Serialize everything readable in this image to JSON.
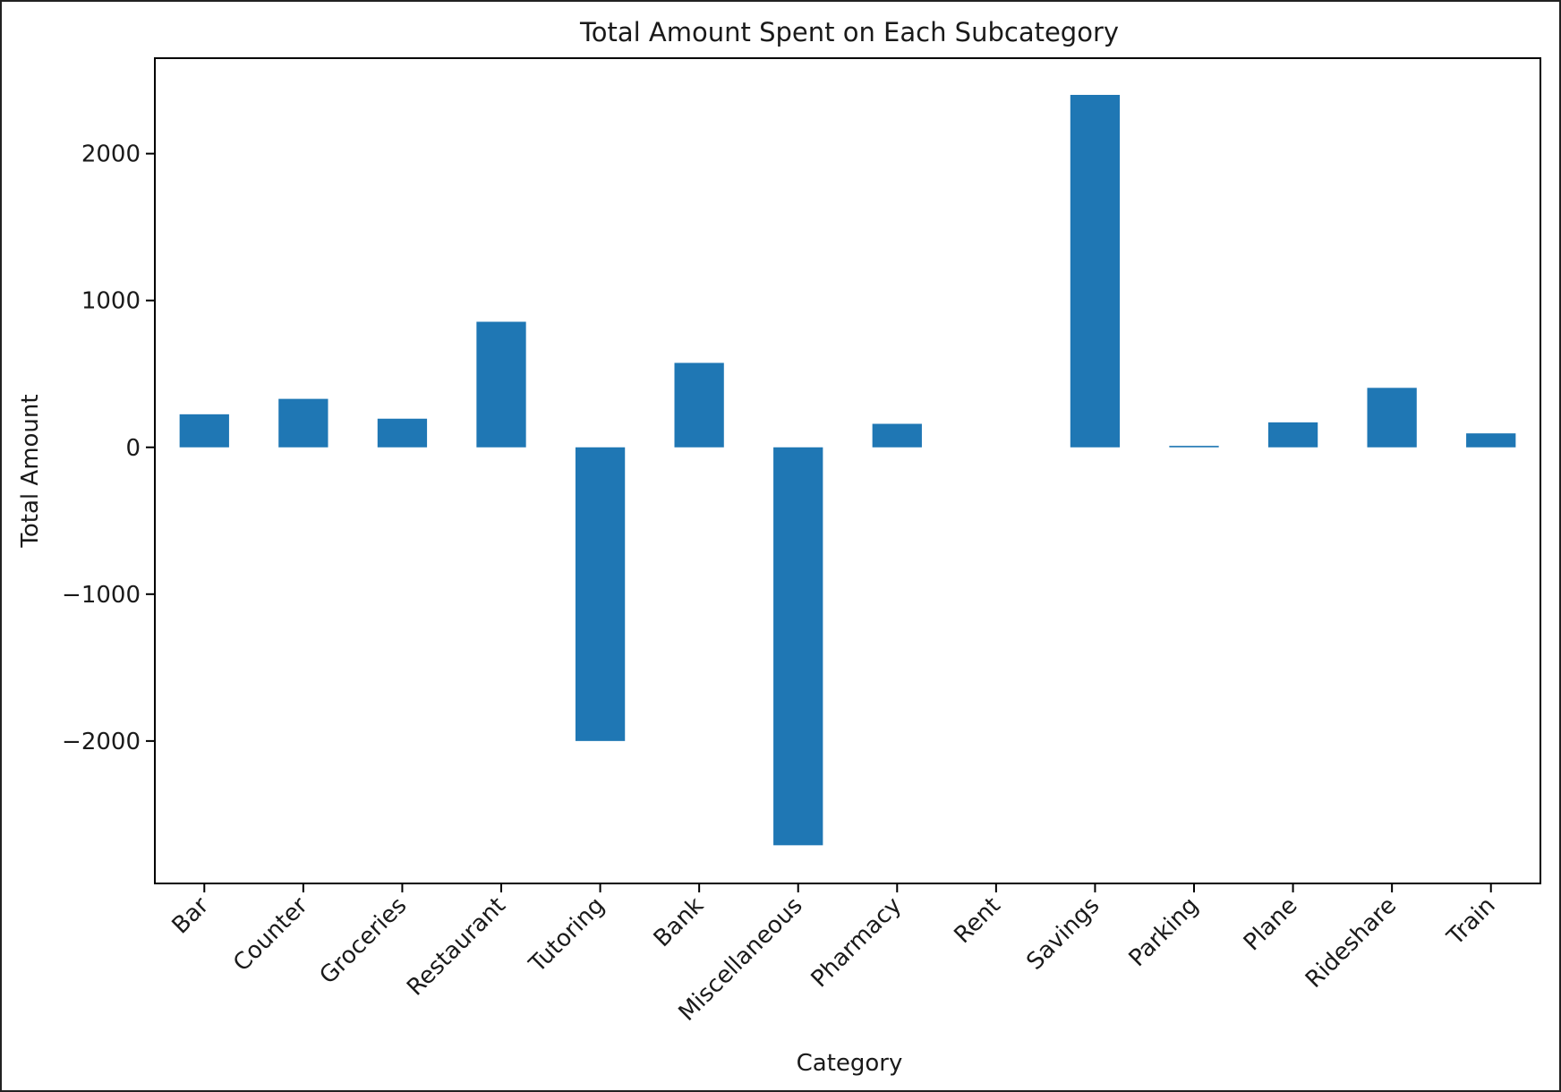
{
  "chart_data": {
    "type": "bar",
    "title": "Total Amount Spent on Each Subcategory",
    "xlabel": "Category",
    "ylabel": "Total Amount",
    "categories": [
      "Bar",
      "Counter",
      "Groceries",
      "Restaurant",
      "Tutoring",
      "Bank",
      "Miscellaneous",
      "Pharmacy",
      "Rent",
      "Savings",
      "Parking",
      "Plane",
      "Rideshare",
      "Train"
    ],
    "values": [
      225,
      330,
      195,
      855,
      -2000,
      575,
      -2710,
      160,
      0,
      2400,
      10,
      170,
      405,
      95
    ],
    "ylim": [
      -2970,
      2650
    ],
    "yticks": [
      -2000,
      -1000,
      0,
      1000,
      2000
    ],
    "ytick_labels": [
      "−2000",
      "−1000",
      "0",
      "1000",
      "2000"
    ],
    "grid": false,
    "bar_color": "#1f77b4"
  }
}
